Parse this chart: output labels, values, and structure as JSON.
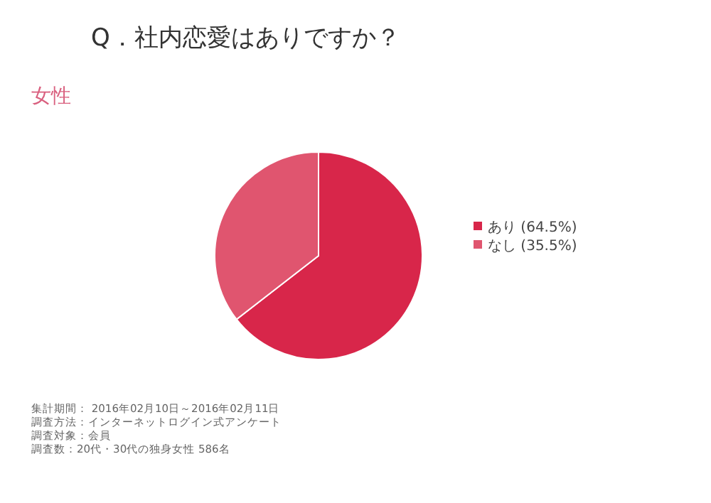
{
  "chart_data": {
    "type": "pie",
    "title": "Q．社内恋愛はありですか？",
    "subtitle": "女性",
    "categories": [
      "あり (64.5%)",
      "なし (35.5%)"
    ],
    "values": [
      64.5,
      35.5
    ],
    "colors": [
      "#d8264a",
      "#e0556f"
    ],
    "legend": "right",
    "annotations": [
      "集計期間： 2016年02月10日～2016年02月11日",
      "調査方法：インターネットログイン式アンケート",
      "調査対象：会員",
      "調査数：20代・30代の独身女性 586名"
    ]
  }
}
